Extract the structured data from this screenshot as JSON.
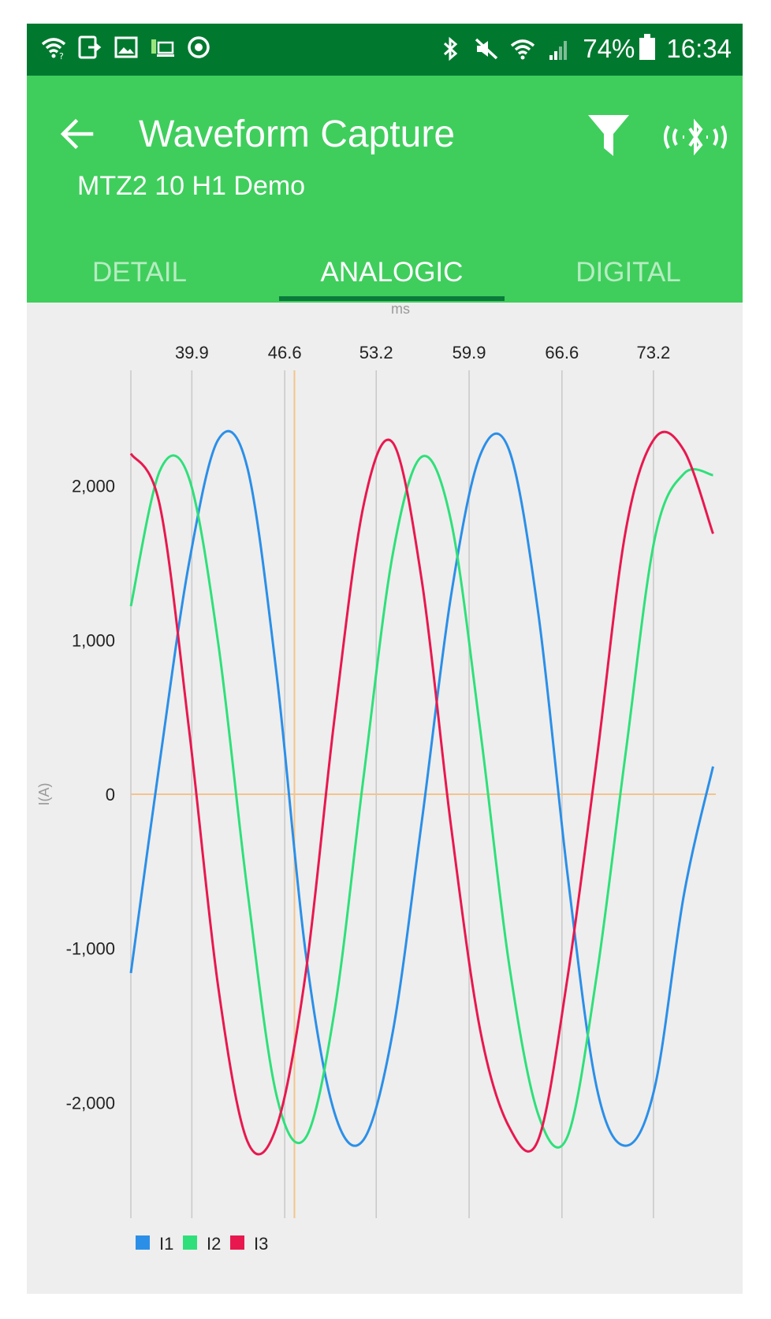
{
  "status_bar": {
    "left_icons": [
      "wifi-question-icon",
      "tablet-sync-icon",
      "image-icon",
      "signal-strength-icon",
      "sync-icon"
    ],
    "right_icons": [
      "bluetooth-icon",
      "mute-icon",
      "wifi-icon",
      "cell-signal-icon"
    ],
    "battery": "74%",
    "time": "16:34"
  },
  "app_bar": {
    "title": "Waveform Capture",
    "subtitle": "MTZ2 10 H1 Demo",
    "back_icon": "arrow-left-icon",
    "filter_icon": "filter-icon",
    "bluetooth_icon": "bluetooth-connect-icon"
  },
  "tabs": [
    {
      "label": "DETAIL",
      "active": false
    },
    {
      "label": "ANALOGIC",
      "active": true
    },
    {
      "label": "DIGITAL",
      "active": false
    }
  ],
  "chart_data": {
    "type": "line",
    "xlabel": "ms",
    "ylabel": "I(A)",
    "x_ticks": [
      "39.9",
      "46.6",
      "53.2",
      "59.9",
      "66.6",
      "73.2"
    ],
    "x_tick_values": [
      39.9,
      46.6,
      53.2,
      59.9,
      66.6,
      73.2
    ],
    "xlim": [
      35.5,
      77.7
    ],
    "y_ticks": [
      "2,000",
      "1,000",
      "0",
      "-1,000",
      "-2,000"
    ],
    "y_tick_values": [
      2000,
      1000,
      0,
      -1000,
      -2000
    ],
    "ylim": [
      -2750,
      2750
    ],
    "grid": "vertical",
    "legend": "bottom-left",
    "cursor_x": 47.3,
    "colors": {
      "I1": "#2b8fe8",
      "I2": "#2fe07a",
      "I3": "#e8184f",
      "cursor": "#f4c48c"
    },
    "series": [
      {
        "name": "I1",
        "color": "#2b8fe8",
        "x": [
          35.5,
          37.6,
          39.7,
          41.8,
          43.9,
          46.0,
          48.1,
          50.2,
          52.3,
          54.4,
          56.5,
          58.6,
          60.7,
          62.8,
          64.9,
          67.0,
          69.1,
          71.2,
          73.3,
          75.4,
          77.5
        ],
        "y": [
          -1160,
          220,
          1500,
          2300,
          2120,
          790,
          -1020,
          -2070,
          -2240,
          -1540,
          -170,
          1290,
          2200,
          2230,
          1170,
          -520,
          -1900,
          -2280,
          -1900,
          -650,
          180
        ]
      },
      {
        "name": "I2",
        "color": "#2fe07a",
        "x": [
          35.5,
          37.6,
          39.7,
          41.8,
          43.9,
          46.0,
          48.1,
          50.2,
          52.3,
          54.4,
          56.5,
          58.6,
          60.7,
          62.8,
          64.9,
          67.0,
          69.1,
          71.2,
          73.3,
          75.4,
          77.5
        ],
        "y": [
          1220,
          2100,
          2050,
          980,
          -620,
          -1950,
          -2230,
          -1400,
          120,
          1560,
          2190,
          1770,
          420,
          -1110,
          -2080,
          -2220,
          -1180,
          270,
          1660,
          2080,
          2070
        ]
      },
      {
        "name": "I3",
        "color": "#e8184f",
        "x": [
          35.5,
          37.6,
          39.7,
          41.8,
          43.9,
          46.0,
          48.1,
          50.2,
          52.3,
          54.4,
          56.5,
          58.6,
          60.7,
          62.8,
          64.9,
          67.0,
          69.1,
          71.2,
          73.3,
          75.4,
          77.5
        ],
        "y": [
          2210,
          1870,
          420,
          -1250,
          -2250,
          -2160,
          -1170,
          500,
          1880,
          2280,
          1380,
          -210,
          -1530,
          -2160,
          -2240,
          -1190,
          220,
          1710,
          2310,
          2230,
          1690
        ]
      }
    ]
  }
}
